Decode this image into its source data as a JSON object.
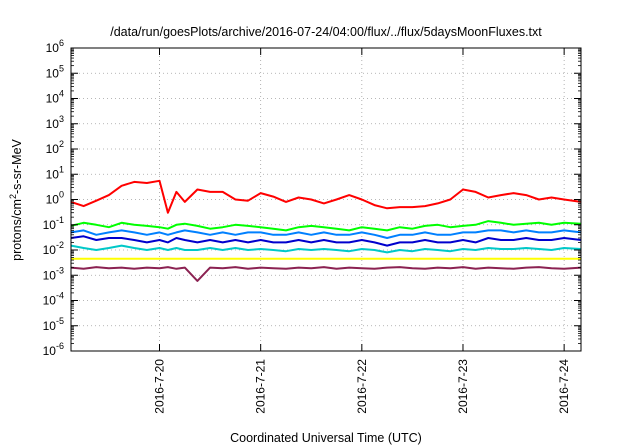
{
  "chart_data": {
    "type": "line",
    "title": "/data/run/goesPlots/archive/2016-07-24/04:00/flux/../flux/5daysMoonFluxes.txt",
    "xlabel": "Coordinated Universal Time (UTC)",
    "ylabel": "protons/cm²-s-sr-MeV",
    "ylabel_parts": {
      "base": "protons/cm",
      "sup": "2",
      "rest": "-s-sr-MeV"
    },
    "x_scale": "time",
    "xlim": [
      "2016-07-19T03:00",
      "2016-07-24T04:00"
    ],
    "x_ticks": [
      "2016-7-20",
      "2016-7-21",
      "2016-7-22",
      "2016-7-23",
      "2016-7-24"
    ],
    "y_scale": "log",
    "ylim": [
      1e-06,
      1000000.0
    ],
    "y_ticks": [
      {
        "base": "10",
        "exp": "-6"
      },
      {
        "base": "10",
        "exp": "-5"
      },
      {
        "base": "10",
        "exp": "-4"
      },
      {
        "base": "10",
        "exp": "-3"
      },
      {
        "base": "10",
        "exp": "-2"
      },
      {
        "base": "10",
        "exp": "-1"
      },
      {
        "base": "10",
        "exp": "0"
      },
      {
        "base": "10",
        "exp": "1"
      },
      {
        "base": "10",
        "exp": "2"
      },
      {
        "base": "10",
        "exp": "3"
      },
      {
        "base": "10",
        "exp": "4"
      },
      {
        "base": "10",
        "exp": "5"
      },
      {
        "base": "10",
        "exp": "6"
      }
    ],
    "grid": true,
    "x": [
      "2016-07-19T03:00",
      "2016-07-19T06:00",
      "2016-07-19T09:00",
      "2016-07-19T12:00",
      "2016-07-19T15:00",
      "2016-07-19T18:00",
      "2016-07-19T21:00",
      "2016-07-20T00:00",
      "2016-07-20T02:00",
      "2016-07-20T04:00",
      "2016-07-20T06:00",
      "2016-07-20T09:00",
      "2016-07-20T12:00",
      "2016-07-20T15:00",
      "2016-07-20T18:00",
      "2016-07-20T21:00",
      "2016-07-21T00:00",
      "2016-07-21T03:00",
      "2016-07-21T06:00",
      "2016-07-21T09:00",
      "2016-07-21T12:00",
      "2016-07-21T15:00",
      "2016-07-21T18:00",
      "2016-07-21T21:00",
      "2016-07-22T00:00",
      "2016-07-22T03:00",
      "2016-07-22T06:00",
      "2016-07-22T09:00",
      "2016-07-22T12:00",
      "2016-07-22T15:00",
      "2016-07-22T18:00",
      "2016-07-22T21:00",
      "2016-07-23T00:00",
      "2016-07-23T03:00",
      "2016-07-23T06:00",
      "2016-07-23T09:00",
      "2016-07-23T12:00",
      "2016-07-23T15:00",
      "2016-07-23T18:00",
      "2016-07-23T21:00",
      "2016-07-24T00:00",
      "2016-07-24T04:00"
    ],
    "series": [
      {
        "color": "#ff0000",
        "values": [
          0.8,
          0.55,
          0.9,
          1.5,
          3.5,
          5.0,
          4.5,
          5.5,
          0.3,
          2.0,
          0.8,
          2.5,
          2.0,
          2.0,
          1.0,
          0.9,
          1.8,
          1.3,
          0.8,
          1.2,
          1.0,
          0.7,
          1.0,
          1.5,
          1.0,
          0.6,
          0.45,
          0.5,
          0.5,
          0.55,
          0.7,
          1.0,
          2.5,
          2.0,
          1.2,
          1.5,
          1.8,
          1.5,
          1.0,
          1.2,
          1.0,
          0.8
        ]
      },
      {
        "color": "#00ff00",
        "values": [
          0.09,
          0.12,
          0.1,
          0.08,
          0.12,
          0.1,
          0.09,
          0.08,
          0.07,
          0.1,
          0.11,
          0.09,
          0.07,
          0.08,
          0.1,
          0.09,
          0.08,
          0.07,
          0.06,
          0.08,
          0.09,
          0.08,
          0.07,
          0.06,
          0.08,
          0.07,
          0.06,
          0.08,
          0.07,
          0.09,
          0.1,
          0.08,
          0.09,
          0.1,
          0.14,
          0.12,
          0.1,
          0.11,
          0.12,
          0.1,
          0.12,
          0.11
        ]
      },
      {
        "color": "#0080ff",
        "values": [
          0.05,
          0.06,
          0.04,
          0.05,
          0.06,
          0.05,
          0.04,
          0.05,
          0.04,
          0.05,
          0.06,
          0.05,
          0.04,
          0.05,
          0.04,
          0.05,
          0.05,
          0.04,
          0.04,
          0.05,
          0.04,
          0.05,
          0.04,
          0.04,
          0.05,
          0.04,
          0.03,
          0.04,
          0.04,
          0.05,
          0.04,
          0.04,
          0.05,
          0.05,
          0.06,
          0.06,
          0.05,
          0.06,
          0.05,
          0.05,
          0.06,
          0.05
        ]
      },
      {
        "color": "#0000cd",
        "values": [
          0.03,
          0.035,
          0.025,
          0.03,
          0.03,
          0.025,
          0.02,
          0.025,
          0.02,
          0.03,
          0.025,
          0.02,
          0.025,
          0.02,
          0.025,
          0.02,
          0.025,
          0.02,
          0.02,
          0.025,
          0.02,
          0.025,
          0.02,
          0.02,
          0.025,
          0.02,
          0.015,
          0.02,
          0.02,
          0.025,
          0.02,
          0.02,
          0.025,
          0.02,
          0.03,
          0.025,
          0.025,
          0.03,
          0.025,
          0.025,
          0.03,
          0.025
        ]
      },
      {
        "color": "#00c8c8",
        "values": [
          0.015,
          0.012,
          0.01,
          0.012,
          0.015,
          0.012,
          0.01,
          0.012,
          0.01,
          0.012,
          0.01,
          0.01,
          0.012,
          0.01,
          0.012,
          0.01,
          0.011,
          0.01,
          0.009,
          0.011,
          0.01,
          0.011,
          0.01,
          0.009,
          0.011,
          0.01,
          0.008,
          0.01,
          0.009,
          0.011,
          0.01,
          0.009,
          0.011,
          0.01,
          0.012,
          0.011,
          0.011,
          0.012,
          0.011,
          0.01,
          0.012,
          0.011
        ]
      },
      {
        "color": "#ffff00",
        "values": [
          0.0045,
          0.0045,
          0.0045,
          0.0045,
          0.0045,
          0.0045,
          0.0045,
          0.0045,
          0.0045,
          0.0045,
          0.0045,
          0.0045,
          0.0045,
          0.0045,
          0.0045,
          0.0045,
          0.0045,
          0.0045,
          0.0045,
          0.0045,
          0.0045,
          0.0045,
          0.0045,
          0.0045,
          0.0045,
          0.0045,
          0.0045,
          0.0045,
          0.0045,
          0.0045,
          0.0045,
          0.0045,
          0.0045,
          0.0045,
          0.0045,
          0.0045,
          0.0045,
          0.0045,
          0.0045,
          0.0045,
          0.0045,
          0.0045
        ]
      },
      {
        "color": "#8b2252",
        "values": [
          0.002,
          0.0018,
          0.0021,
          0.0019,
          0.002,
          0.0018,
          0.002,
          0.0019,
          0.0021,
          0.0018,
          0.002,
          0.0006,
          0.002,
          0.0019,
          0.0021,
          0.0018,
          0.002,
          0.0019,
          0.0018,
          0.002,
          0.0019,
          0.0021,
          0.0018,
          0.002,
          0.0019,
          0.0018,
          0.002,
          0.0021,
          0.0019,
          0.0018,
          0.002,
          0.0019,
          0.0021,
          0.0018,
          0.002,
          0.0019,
          0.0018,
          0.002,
          0.0021,
          0.0019,
          0.0018,
          0.002
        ]
      }
    ]
  }
}
